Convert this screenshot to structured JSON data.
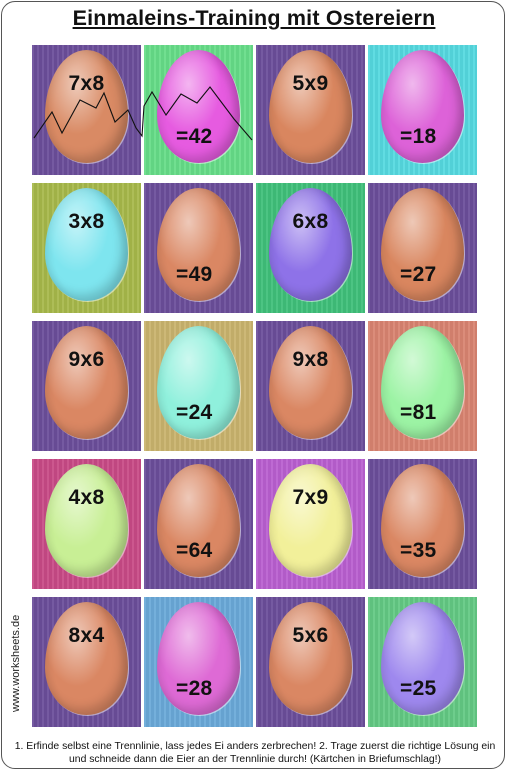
{
  "title": "Einmaleins-Training mit Ostereiern",
  "watermark": "www.worksheets.de",
  "instructions": "1. Erfinde selbst eine Trennlinie, lass jedes Ei anders zerbrechen! 2. Trage zuerst die richtige Lösung ein und schneide dann die Eier an der Trennlinie durch! (Kärtchen in Briefumschlag!)",
  "cards": [
    {
      "text": "7x8",
      "kind": "question",
      "bg": "#6b4e9a",
      "egg": "#d98a64"
    },
    {
      "text": "=42",
      "kind": "answer",
      "bg": "#66dd88",
      "egg": "#e65be0"
    },
    {
      "text": "5x9",
      "kind": "question",
      "bg": "#6b4e9a",
      "egg": "#d9865f"
    },
    {
      "text": "=18",
      "kind": "answer",
      "bg": "#55d9e0",
      "egg": "#dd62d8"
    },
    {
      "text": "3x8",
      "kind": "question",
      "bg": "#a7b84a",
      "egg": "#7ee5ef"
    },
    {
      "text": "=49",
      "kind": "answer",
      "bg": "#6b4e9a",
      "egg": "#da8763"
    },
    {
      "text": "6x8",
      "kind": "question",
      "bg": "#3fbf7a",
      "egg": "#8e72e8"
    },
    {
      "text": "=27",
      "kind": "answer",
      "bg": "#6b4e9a",
      "egg": "#d9865f"
    },
    {
      "text": "9x6",
      "kind": "question",
      "bg": "#6b4e9a",
      "egg": "#da8763"
    },
    {
      "text": "=24",
      "kind": "answer",
      "bg": "#c9b36d",
      "egg": "#8ff0dc"
    },
    {
      "text": "9x8",
      "kind": "question",
      "bg": "#6b4e9a",
      "egg": "#da8763"
    },
    {
      "text": "=81",
      "kind": "answer",
      "bg": "#d88370",
      "egg": "#9cf3a4"
    },
    {
      "text": "4x8",
      "kind": "question",
      "bg": "#c84a86",
      "egg": "#c8ef95"
    },
    {
      "text": "=64",
      "kind": "answer",
      "bg": "#6b4e9a",
      "egg": "#da8763"
    },
    {
      "text": "7x9",
      "kind": "question",
      "bg": "#b95fd0",
      "egg": "#f2f09a"
    },
    {
      "text": "=35",
      "kind": "answer",
      "bg": "#6b4e9a",
      "egg": "#da8763"
    },
    {
      "text": "8x4",
      "kind": "question",
      "bg": "#6b4e9a",
      "egg": "#da8763"
    },
    {
      "text": "=28",
      "kind": "answer",
      "bg": "#6aa9d8",
      "egg": "#de6ad5"
    },
    {
      "text": "5x6",
      "kind": "question",
      "bg": "#6b4e9a",
      "egg": "#da8763"
    },
    {
      "text": "=25",
      "kind": "answer",
      "bg": "#63c983",
      "egg": "#9e88ee"
    }
  ]
}
